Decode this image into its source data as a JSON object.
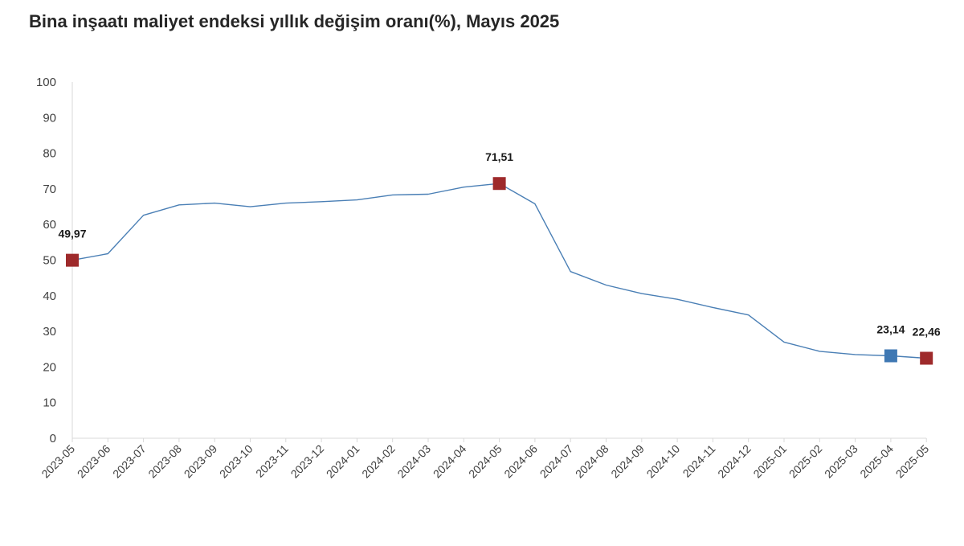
{
  "chart_data": {
    "type": "line",
    "title": "Bina inşaatı maliyet endeksi yıllık değişim oranı(%), Mayıs 2025",
    "xlabel": "",
    "ylabel": "",
    "ylim": [
      0,
      100
    ],
    "yticks": [
      "0",
      "10",
      "20",
      "30",
      "40",
      "50",
      "60",
      "70",
      "80",
      "90",
      "100"
    ],
    "grid": false,
    "legend": "none",
    "categories": [
      "2023-05",
      "2023-06",
      "2023-07",
      "2023-08",
      "2023-09",
      "2023-10",
      "2023-11",
      "2023-12",
      "2024-01",
      "2024-02",
      "2024-03",
      "2024-04",
      "2024-05",
      "2024-06",
      "2024-07",
      "2024-08",
      "2024-09",
      "2024-10",
      "2024-11",
      "2024-12",
      "2025-01",
      "2025-02",
      "2025-03",
      "2025-04",
      "2025-05"
    ],
    "series": [
      {
        "values": [
          49.97,
          51.8,
          62.6,
          65.5,
          66.0,
          65.0,
          66.0,
          66.4,
          66.9,
          68.3,
          68.5,
          70.5,
          71.51,
          65.8,
          46.8,
          43.0,
          40.6,
          39.0,
          36.7,
          34.6,
          27.0,
          24.4,
          23.5,
          23.14,
          22.46
        ],
        "color": "#4a7fb5"
      }
    ],
    "markers": [
      {
        "index": 0,
        "label": "49,97",
        "color": "#9e2a2b"
      },
      {
        "index": 12,
        "label": "71,51",
        "color": "#9e2a2b"
      },
      {
        "index": 23,
        "label": "23,14",
        "color": "#3f78b3"
      },
      {
        "index": 24,
        "label": "22,46",
        "color": "#9e2a2b"
      }
    ]
  }
}
